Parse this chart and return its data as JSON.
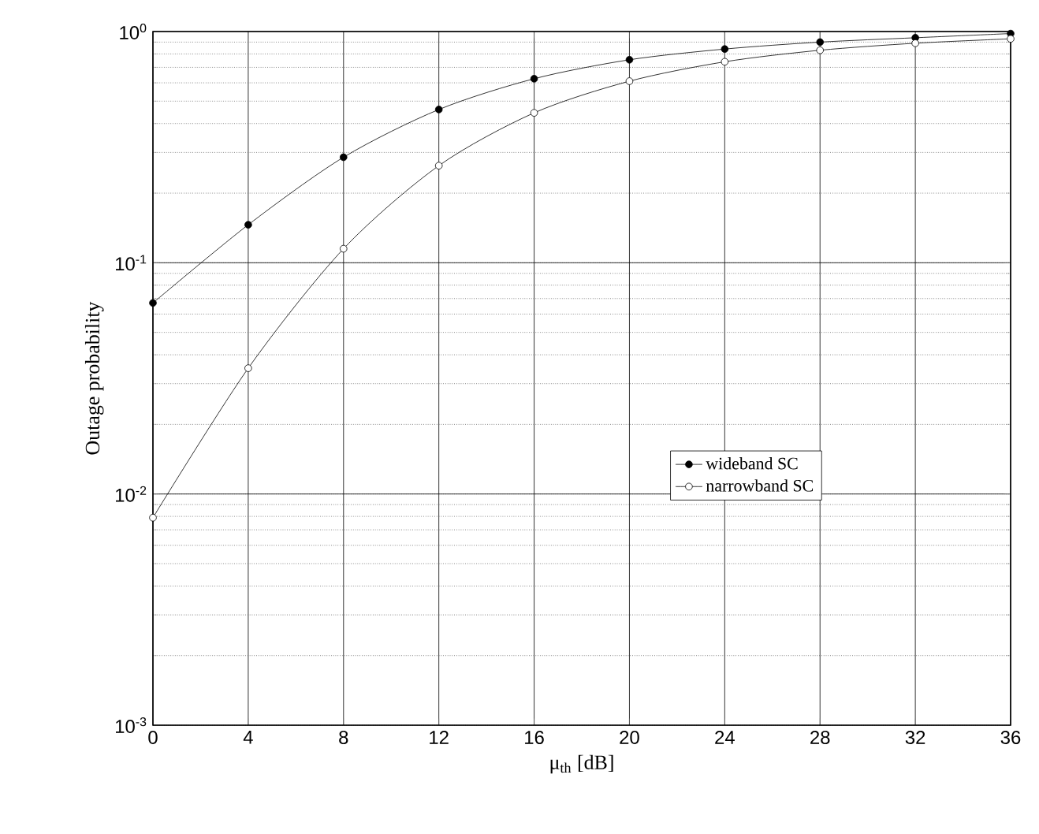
{
  "chart_data": {
    "type": "line",
    "xlabel": "μ$_{th}$ [dB]",
    "ylabel": "Outage probability",
    "log": "y",
    "grid": true,
    "legend": "right",
    "marker": "circle",
    "line_style": "solid",
    "x": [
      0,
      4,
      8,
      12,
      16,
      20,
      24,
      28,
      32,
      36
    ],
    "xlim": [
      0,
      36
    ],
    "xticks": [
      0,
      4,
      8,
      12,
      16,
      20,
      24,
      28,
      32,
      36
    ],
    "ylim": [
      0.001,
      1
    ],
    "yticks": [
      {
        "value": 0.001,
        "label": "10$^{-3}$"
      },
      {
        "value": 0.01,
        "label": "10$^{-2}$"
      },
      {
        "value": 0.1,
        "label": "10$^{-1}$"
      },
      {
        "value": 1,
        "label": "10$^{0}$"
      }
    ],
    "series": [
      {
        "name": "wideband SC",
        "color": "#000000",
        "values": [
          0.067,
          0.146,
          0.286,
          0.46,
          0.625,
          0.755,
          0.84,
          0.9,
          0.94,
          0.98
        ]
      },
      {
        "name": "narrowband SC",
        "color": "#000000",
        "values": [
          0.0079,
          0.035,
          0.115,
          0.263,
          0.445,
          0.61,
          0.74,
          0.83,
          0.89,
          0.93
        ]
      }
    ]
  }
}
